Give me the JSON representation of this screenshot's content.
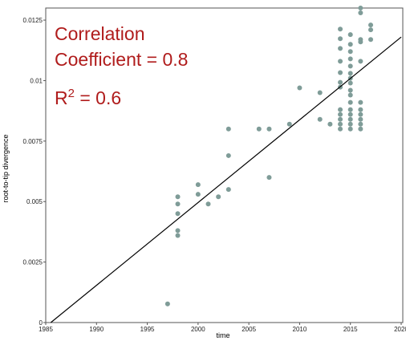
{
  "chart_data": {
    "type": "scatter",
    "annotation": {
      "lines": [
        "Correlation",
        "Coefficient = 0.8"
      ],
      "r2": {
        "base": "R",
        "sup": "2",
        "rest": " = 0.6"
      }
    },
    "xlabel": "time",
    "ylabel": "root-to-tip divergence",
    "color": "#7f9c98",
    "x": [
      1997,
      1998,
      1998,
      1998,
      1998,
      1998,
      2000,
      2000,
      2001,
      2002,
      2003,
      2003,
      2003,
      2006,
      2007,
      2007,
      2009,
      2010,
      2012,
      2012,
      2013,
      2014,
      2014,
      2014,
      2014,
      2014,
      2014,
      2014,
      2014,
      2014,
      2014,
      2014,
      2014,
      2015,
      2015,
      2015,
      2015,
      2015,
      2015,
      2015,
      2015,
      2015,
      2015,
      2015,
      2015,
      2015,
      2015,
      2015,
      2015,
      2016,
      2016,
      2016,
      2016,
      2016,
      2016,
      2016,
      2016,
      2016,
      2016,
      2016,
      2017,
      2017,
      2017
    ],
    "values": [
      0.00077,
      0.0052,
      0.0049,
      0.0045,
      0.0038,
      0.0036,
      0.0057,
      0.0053,
      0.0049,
      0.0052,
      0.008,
      0.0069,
      0.0055,
      0.008,
      0.008,
      0.006,
      0.0082,
      0.0097,
      0.0095,
      0.0084,
      0.0082,
      0.01213,
      0.01173,
      0.01133,
      0.0108,
      0.01033,
      0.00993,
      0.00973,
      0.0088,
      0.0086,
      0.0084,
      0.0082,
      0.008,
      0.0119,
      0.0115,
      0.0112,
      0.0109,
      0.0106,
      0.0103,
      0.0101,
      0.0099,
      0.0096,
      0.0094,
      0.0091,
      0.0088,
      0.0086,
      0.0084,
      0.0082,
      0.008,
      0.013,
      0.0128,
      0.0117,
      0.0116,
      0.0108,
      0.0091,
      0.0088,
      0.0086,
      0.0084,
      0.0082,
      0.008,
      0.0123,
      0.0121,
      0.0117
    ],
    "trend_line": {
      "x": [
        1985.5,
        2020
      ],
      "values": [
        0,
        0.0118
      ],
      "color": "#000000"
    },
    "xlim": [
      1985,
      2020
    ],
    "xticks": [
      1985,
      1990,
      1995,
      2000,
      2005,
      2010,
      2015,
      2020
    ],
    "ylim": [
      0,
      0.013
    ],
    "yticks": [
      0,
      0.0025,
      0.005,
      0.0075,
      0.01,
      0.0125
    ]
  }
}
